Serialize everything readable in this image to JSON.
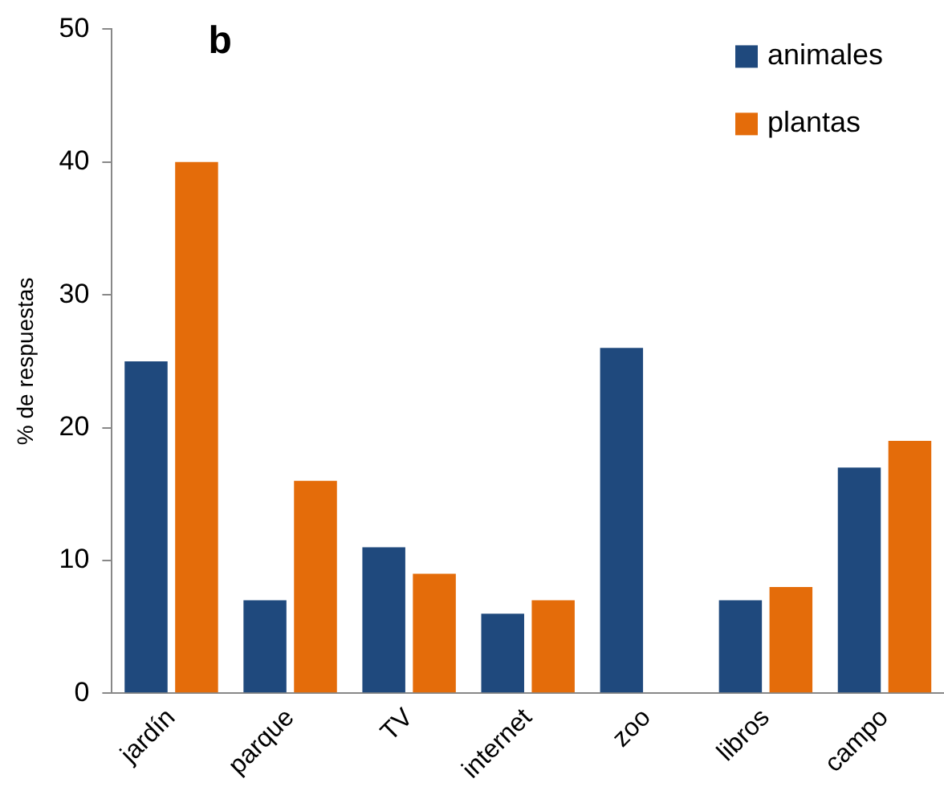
{
  "chart_data": {
    "type": "bar",
    "title": "b",
    "ylabel": "% de respuestas",
    "categories": [
      "jardín",
      "parque",
      "TV",
      "internet",
      "zoo",
      "libros",
      "campo"
    ],
    "series": [
      {
        "name": "animales",
        "color": "#1f497d",
        "values": [
          25,
          7,
          11,
          6,
          26,
          7,
          17
        ]
      },
      {
        "name": "plantas",
        "color": "#e46c0a",
        "values": [
          40,
          16,
          9,
          7,
          null,
          8,
          19
        ]
      }
    ],
    "ylim": [
      0,
      50
    ],
    "yticks": [
      0,
      10,
      20,
      30,
      40,
      50
    ],
    "grid": false,
    "legend": "top right"
  }
}
